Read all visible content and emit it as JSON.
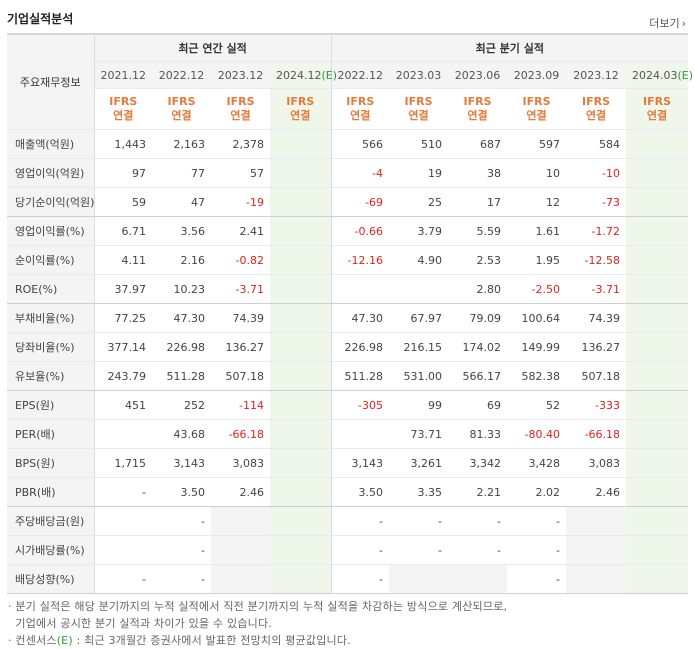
{
  "title": "기업실적분석",
  "more_label": "더보기",
  "row_header": "주요재무정보",
  "group_annual": "최근 연간 실적",
  "group_quarter": "최근 분기 실적",
  "estimate_suffix": "(E)",
  "periods": [
    {
      "label": "2021.12",
      "est": false
    },
    {
      "label": "2022.12",
      "est": false
    },
    {
      "label": "2023.12",
      "est": false
    },
    {
      "label": "2024.12",
      "est": true
    },
    {
      "label": "2022.12",
      "est": false
    },
    {
      "label": "2023.03",
      "est": false
    },
    {
      "label": "2023.06",
      "est": false
    },
    {
      "label": "2023.09",
      "est": false
    },
    {
      "label": "2023.12",
      "est": false
    },
    {
      "label": "2024.03",
      "est": true
    }
  ],
  "ifrs_label": "IFRS",
  "consol_label": "연결",
  "rows": [
    {
      "label": "매출액(억원)",
      "values": [
        "1,443",
        "2,163",
        "2,378",
        "",
        "566",
        "510",
        "687",
        "597",
        "584",
        ""
      ],
      "group_end": false
    },
    {
      "label": "영업이익(억원)",
      "values": [
        "97",
        "77",
        "57",
        "",
        "-4",
        "19",
        "38",
        "10",
        "-10",
        ""
      ],
      "group_end": false
    },
    {
      "label": "당기순이익(억원)",
      "values": [
        "59",
        "47",
        "-19",
        "",
        "-69",
        "25",
        "17",
        "12",
        "-73",
        ""
      ],
      "group_end": true
    },
    {
      "label": "영업이익률(%)",
      "values": [
        "6.71",
        "3.56",
        "2.41",
        "",
        "-0.66",
        "3.79",
        "5.59",
        "1.61",
        "-1.72",
        ""
      ],
      "group_end": false
    },
    {
      "label": "순이익률(%)",
      "values": [
        "4.11",
        "2.16",
        "-0.82",
        "",
        "-12.16",
        "4.90",
        "2.53",
        "1.95",
        "-12.58",
        ""
      ],
      "group_end": false
    },
    {
      "label": "ROE(%)",
      "values": [
        "37.97",
        "10.23",
        "-3.71",
        "",
        "",
        "",
        "2.80",
        "-2.50",
        "-3.71",
        ""
      ],
      "group_end": true
    },
    {
      "label": "부채비율(%)",
      "values": [
        "77.25",
        "47.30",
        "74.39",
        "",
        "47.30",
        "67.97",
        "79.09",
        "100.64",
        "74.39",
        ""
      ],
      "group_end": false
    },
    {
      "label": "당좌비율(%)",
      "values": [
        "377.14",
        "226.98",
        "136.27",
        "",
        "226.98",
        "216.15",
        "174.02",
        "149.99",
        "136.27",
        ""
      ],
      "group_end": false
    },
    {
      "label": "유보율(%)",
      "values": [
        "243.79",
        "511.28",
        "507.18",
        "",
        "511.28",
        "531.00",
        "566.17",
        "582.38",
        "507.18",
        ""
      ],
      "group_end": true
    },
    {
      "label": "EPS(원)",
      "values": [
        "451",
        "252",
        "-114",
        "",
        "-305",
        "99",
        "69",
        "52",
        "-333",
        ""
      ],
      "group_end": false
    },
    {
      "label": "PER(배)",
      "values": [
        "",
        "43.68",
        "-66.18",
        "",
        "",
        "73.71",
        "81.33",
        "-80.40",
        "-66.18",
        ""
      ],
      "group_end": false
    },
    {
      "label": "BPS(원)",
      "values": [
        "1,715",
        "3,143",
        "3,083",
        "",
        "3,143",
        "3,261",
        "3,342",
        "3,428",
        "3,083",
        ""
      ],
      "group_end": false
    },
    {
      "label": "PBR(배)",
      "values": [
        "-",
        "3.50",
        "2.46",
        "",
        "3.50",
        "3.35",
        "2.21",
        "2.02",
        "2.46",
        ""
      ],
      "group_end": true
    },
    {
      "label": "주당배당금(원)",
      "values": [
        "",
        "-",
        "",
        "",
        "-",
        "-",
        "-",
        "-",
        "",
        ""
      ],
      "group_end": false
    },
    {
      "label": "시가배당률(%)",
      "values": [
        "",
        "-",
        "",
        "",
        "-",
        "-",
        "-",
        "-",
        "",
        ""
      ],
      "group_end": false
    },
    {
      "label": "배당성향(%)",
      "values": [
        "-",
        "-",
        "",
        "",
        "-",
        "",
        "",
        "-",
        "",
        ""
      ],
      "group_end": true
    }
  ],
  "shaded_empty": [
    [
      13,
      2
    ],
    [
      13,
      8
    ],
    [
      14,
      2
    ],
    [
      14,
      8
    ],
    [
      15,
      2
    ],
    [
      15,
      5
    ],
    [
      15,
      6
    ],
    [
      15,
      8
    ]
  ],
  "notes": [
    "· 분기 실적은 해당 분기까지의 누적 실적에서 직전 분기까지의 누적 실적을 차감하는 방식으로 계산되므로,",
    "  기업에서 공시한 분기 실적과 차이가 있을 수 있습니다.",
    "· 컨센서스(E) : 최근 3개월간 증권사에서 발표한 전망치의 평균값입니다."
  ],
  "colors": {
    "negative": "#e0231e",
    "ifrs": "#e7793a",
    "estimate_bg": "#eff7ea",
    "header_bg": "#f4f4f4"
  }
}
